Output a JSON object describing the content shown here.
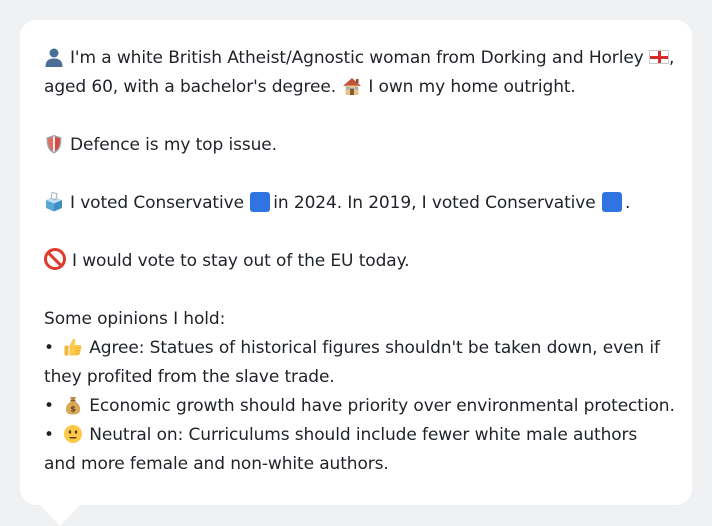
{
  "profile": {
    "intro_part1": "I'm a white British Atheist/Agnostic woman from Dorking and Horley",
    "intro_part2": ",",
    "intro_line2_part1": "aged 60, with a bachelor's degree.",
    "intro_line2_part2": "I own my home outright."
  },
  "issue": {
    "text": "Defence is my top issue."
  },
  "voting": {
    "part1": "I voted Conservative",
    "part2": "in 2024. In 2019, I voted Conservative",
    "part3": "."
  },
  "eu": {
    "text": "I would vote to stay out of the EU today."
  },
  "opinions": {
    "heading": "Some opinions I hold:",
    "bullet": "•",
    "items": [
      {
        "icon": "thumbs-up-icon",
        "text": "Agree: Statues of historical figures shouldn't be taken down, even if they profited from the slave trade."
      },
      {
        "icon": "money-bag-icon",
        "text": "Economic growth should have priority over environmental protection."
      },
      {
        "icon": "neutral-face-icon",
        "text": "Neutral on: Curriculums should include fewer white male authors and more female and non-white authors."
      }
    ]
  },
  "colors": {
    "card_background": "#ffffff",
    "page_background": "#f0f1f3",
    "text": "#1f2328",
    "conservative_blue": "#2f74e0"
  }
}
